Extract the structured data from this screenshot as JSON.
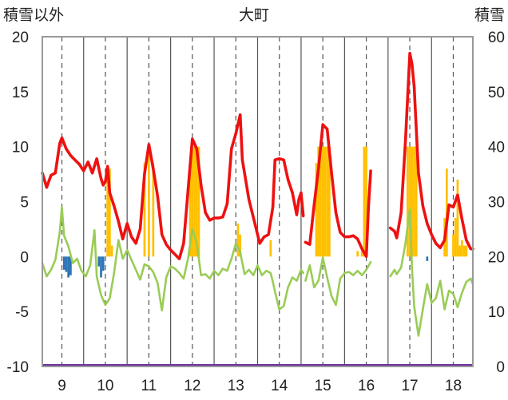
{
  "chart_data": {
    "type": "line",
    "title": "大町",
    "y_left_label": "積雪以外",
    "y_right_label": "積雪",
    "y_left_range": [
      -10,
      20
    ],
    "y_right_range": [
      0,
      60
    ],
    "y_left_ticks": [
      "20",
      "15",
      "10",
      "5",
      "0",
      "-5",
      "-10"
    ],
    "y_right_ticks": [
      "60",
      "50",
      "40",
      "30",
      "20",
      "10",
      "0"
    ],
    "x_range": [
      8.55,
      18.45
    ],
    "x_ticks": [
      "9",
      "10",
      "11",
      "12",
      "13",
      "14",
      "15",
      "16",
      "17",
      "18"
    ],
    "grid": "vertical dashed at ticks, solid between",
    "colors": {
      "max_temp": "#ee1111",
      "min_temp": "#99cc55",
      "snow_depth": "#ffc000",
      "precip": "#2e75b6",
      "bottom": "#7030a0",
      "grid": "#555555",
      "axis": "#999999"
    },
    "series": [
      {
        "kind": "line",
        "color_key": "max_temp",
        "axis": "left",
        "segments": [
          [
            [
              8.55,
              7.6
            ],
            [
              8.65,
              6.3
            ],
            [
              8.75,
              7.4
            ],
            [
              8.85,
              7.6
            ],
            [
              8.95,
              10.3
            ],
            [
              9.0,
              10.8
            ],
            [
              9.1,
              9.8
            ],
            [
              9.2,
              9.2
            ],
            [
              9.3,
              8.8
            ],
            [
              9.4,
              8.4
            ],
            [
              9.5,
              7.8
            ],
            [
              9.6,
              8.6
            ],
            [
              9.7,
              7.6
            ],
            [
              9.8,
              8.9
            ],
            [
              9.9,
              7.1
            ],
            [
              9.95,
              6.5
            ],
            [
              10.0,
              6.8
            ],
            [
              10.05,
              8.2
            ],
            [
              10.1,
              5.8
            ],
            [
              10.2,
              4.6
            ],
            [
              10.3,
              3.2
            ],
            [
              10.4,
              1.6
            ],
            [
              10.5,
              3.0
            ],
            [
              10.6,
              1.8
            ],
            [
              10.7,
              1.2
            ],
            [
              10.8,
              2.5
            ],
            [
              10.9,
              7.5
            ],
            [
              11.0,
              10.2
            ],
            [
              11.1,
              8.0
            ],
            [
              11.2,
              5.5
            ],
            [
              11.3,
              2.0
            ],
            [
              11.4,
              1.1
            ],
            [
              11.5,
              0.6
            ],
            [
              11.6,
              0.2
            ],
            [
              11.7,
              -0.2
            ],
            [
              11.8,
              1.2
            ],
            [
              11.9,
              6.0
            ],
            [
              12.0,
              10.7
            ],
            [
              12.1,
              9.8
            ],
            [
              12.2,
              6.5
            ],
            [
              12.3,
              4.0
            ],
            [
              12.4,
              3.3
            ],
            [
              12.5,
              3.5
            ],
            [
              12.6,
              3.5
            ],
            [
              12.7,
              3.6
            ],
            [
              12.8,
              4.8
            ],
            [
              12.9,
              9.8
            ],
            [
              13.0,
              11.2
            ],
            [
              13.1,
              12.9
            ],
            [
              13.15,
              8.8
            ],
            [
              13.3,
              5.2
            ],
            [
              13.45,
              2.8
            ],
            [
              13.55,
              1.2
            ],
            [
              13.65,
              1.8
            ],
            [
              13.75,
              2.0
            ],
            [
              13.85,
              4.5
            ],
            [
              13.9,
              8.8
            ],
            [
              14.0,
              8.9
            ],
            [
              14.1,
              8.8
            ],
            [
              14.2,
              7.0
            ],
            [
              14.3,
              5.8
            ],
            [
              14.4,
              3.8
            ],
            [
              14.45,
              5.2
            ],
            [
              14.5,
              5.8
            ],
            [
              14.55,
              3.7
            ]
          ],
          [
            [
              14.6,
              1.3
            ],
            [
              14.7,
              1.1
            ],
            [
              14.8,
              4.7
            ],
            [
              14.9,
              8.0
            ],
            [
              15.0,
              12.0
            ],
            [
              15.1,
              11.6
            ],
            [
              15.2,
              7.6
            ],
            [
              15.3,
              4.0
            ],
            [
              15.4,
              2.2
            ],
            [
              15.5,
              1.8
            ],
            [
              15.6,
              1.8
            ],
            [
              15.7,
              1.9
            ],
            [
              15.8,
              1.6
            ],
            [
              15.9,
              0.7
            ],
            [
              16.0,
              0.0
            ],
            [
              16.05,
              4.5
            ],
            [
              16.1,
              7.8
            ]
          ],
          [
            [
              16.55,
              2.6
            ],
            [
              16.65,
              2.3
            ],
            [
              16.7,
              1.7
            ],
            [
              16.8,
              4.0
            ],
            [
              16.9,
              10.5
            ],
            [
              17.0,
              18.5
            ],
            [
              17.05,
              17.5
            ],
            [
              17.1,
              15.5
            ],
            [
              17.2,
              7.6
            ],
            [
              17.3,
              4.6
            ],
            [
              17.4,
              3.0
            ],
            [
              17.5,
              2.0
            ],
            [
              17.6,
              1.2
            ],
            [
              17.7,
              0.8
            ],
            [
              17.8,
              1.5
            ],
            [
              17.9,
              4.7
            ],
            [
              18.0,
              4.5
            ],
            [
              18.1,
              5.6
            ],
            [
              18.2,
              3.4
            ],
            [
              18.3,
              1.5
            ],
            [
              18.4,
              0.7
            ],
            [
              18.45,
              0.7
            ]
          ]
        ]
      },
      {
        "kind": "line",
        "color_key": "min_temp",
        "axis": "left",
        "segments": [
          [
            [
              8.55,
              -0.6
            ],
            [
              8.65,
              -1.8
            ],
            [
              8.75,
              -1.2
            ],
            [
              8.85,
              -0.3
            ],
            [
              8.95,
              2.2
            ],
            [
              9.0,
              4.5
            ],
            [
              9.05,
              1.9
            ],
            [
              9.15,
              0.9
            ],
            [
              9.25,
              -0.6
            ],
            [
              9.35,
              -0.2
            ],
            [
              9.45,
              -1.3
            ],
            [
              9.55,
              -1.8
            ],
            [
              9.65,
              -0.8
            ],
            [
              9.75,
              2.4
            ],
            [
              9.8,
              -1.8
            ],
            [
              9.9,
              -3.5
            ],
            [
              10.0,
              -4.4
            ],
            [
              10.1,
              -3.8
            ],
            [
              10.2,
              -1.5
            ],
            [
              10.3,
              1.5
            ],
            [
              10.4,
              -0.2
            ],
            [
              10.5,
              0.6
            ],
            [
              10.6,
              -0.3
            ],
            [
              10.7,
              -1.2
            ],
            [
              10.8,
              -2.1
            ],
            [
              10.9,
              -0.7
            ],
            [
              11.0,
              -0.9
            ],
            [
              11.1,
              -1.4
            ],
            [
              11.2,
              -2.4
            ],
            [
              11.3,
              -4.9
            ],
            [
              11.4,
              -1.9
            ],
            [
              11.5,
              -0.9
            ],
            [
              11.6,
              -1.1
            ],
            [
              11.7,
              -1.5
            ],
            [
              11.8,
              -2.0
            ],
            [
              11.9,
              -0.2
            ],
            [
              12.0,
              2.5
            ],
            [
              12.1,
              1.2
            ],
            [
              12.2,
              -1.7
            ],
            [
              12.3,
              -1.6
            ],
            [
              12.4,
              -2.0
            ],
            [
              12.5,
              -1.3
            ],
            [
              12.6,
              -1.7
            ],
            [
              12.7,
              -1.1
            ],
            [
              12.8,
              -1.3
            ],
            [
              12.9,
              -0.2
            ],
            [
              13.0,
              1.2
            ],
            [
              13.1,
              0.4
            ],
            [
              13.2,
              -1.6
            ],
            [
              13.3,
              -1.2
            ],
            [
              13.4,
              -1.7
            ],
            [
              13.5,
              -0.8
            ],
            [
              13.6,
              -1.7
            ],
            [
              13.7,
              -1.3
            ],
            [
              13.8,
              -1.5
            ],
            [
              13.85,
              -2.3
            ],
            [
              13.9,
              -3.2
            ],
            [
              14.0,
              -4.8
            ],
            [
              14.1,
              -4.5
            ],
            [
              14.2,
              -2.8
            ],
            [
              14.3,
              -1.9
            ],
            [
              14.4,
              -2.2
            ],
            [
              14.5,
              -1.2
            ],
            [
              14.55,
              -1.5
            ]
          ],
          [
            [
              14.6,
              -2.2
            ],
            [
              14.7,
              -0.8
            ],
            [
              14.8,
              -2.8
            ],
            [
              14.9,
              -2.2
            ],
            [
              15.0,
              -0.1
            ],
            [
              15.1,
              -1.9
            ],
            [
              15.2,
              -3.6
            ],
            [
              15.3,
              -4.4
            ],
            [
              15.4,
              -2.0
            ],
            [
              15.5,
              -1.5
            ],
            [
              15.6,
              -1.4
            ],
            [
              15.7,
              -1.7
            ],
            [
              15.8,
              -1.3
            ],
            [
              15.9,
              -1.7
            ],
            [
              16.0,
              -1.2
            ],
            [
              16.1,
              -0.5
            ]
          ],
          [
            [
              16.55,
              -1.8
            ],
            [
              16.65,
              -1.2
            ],
            [
              16.7,
              -1.6
            ],
            [
              16.8,
              -1.0
            ],
            [
              16.9,
              1.2
            ],
            [
              17.0,
              4.3
            ],
            [
              17.05,
              -1.0
            ],
            [
              17.1,
              -4.5
            ],
            [
              17.2,
              -7.2
            ],
            [
              17.3,
              -4.8
            ],
            [
              17.4,
              -2.5
            ],
            [
              17.5,
              -4.2
            ],
            [
              17.6,
              -3.8
            ],
            [
              17.7,
              -2.2
            ],
            [
              17.8,
              -4.8
            ],
            [
              17.9,
              -3.1
            ],
            [
              18.0,
              -3.4
            ],
            [
              18.1,
              -4.6
            ],
            [
              18.2,
              -3.3
            ],
            [
              18.3,
              -2.3
            ],
            [
              18.4,
              -2.0
            ],
            [
              18.45,
              -2.5
            ]
          ]
        ]
      },
      {
        "kind": "bar",
        "color_key": "snow_depth",
        "axis": "right",
        "baseline": 20,
        "bars": [
          [
            10.05,
            36
          ],
          [
            10.1,
            36
          ],
          [
            10.15,
            22
          ],
          [
            10.9,
            37
          ],
          [
            11.0,
            39
          ],
          [
            11.1,
            37
          ],
          [
            11.95,
            37
          ],
          [
            12.0,
            40
          ],
          [
            12.05,
            40
          ],
          [
            12.1,
            40
          ],
          [
            12.15,
            40
          ],
          [
            13.05,
            26
          ],
          [
            13.1,
            24
          ],
          [
            13.8,
            23
          ],
          [
            14.85,
            37
          ],
          [
            14.9,
            40
          ],
          [
            14.95,
            40
          ],
          [
            15.0,
            40
          ],
          [
            15.05,
            40
          ],
          [
            15.1,
            40
          ],
          [
            15.15,
            40
          ],
          [
            15.8,
            21
          ],
          [
            15.85,
            20
          ],
          [
            15.9,
            21
          ],
          [
            15.95,
            40
          ],
          [
            16.0,
            40
          ],
          [
            16.95,
            40
          ],
          [
            17.0,
            40
          ],
          [
            17.05,
            40
          ],
          [
            17.1,
            40
          ],
          [
            17.15,
            40
          ],
          [
            17.8,
            27
          ],
          [
            17.85,
            36
          ],
          [
            18.0,
            24
          ],
          [
            18.05,
            27
          ],
          [
            18.1,
            34
          ],
          [
            18.15,
            22
          ],
          [
            18.2,
            23
          ],
          [
            18.25,
            22
          ],
          [
            18.3,
            22
          ]
        ]
      },
      {
        "kind": "bar",
        "color_key": "precip",
        "axis": "left",
        "baseline": 0,
        "bars": [
          [
            9.05,
            -1.2
          ],
          [
            9.1,
            -1.4
          ],
          [
            9.15,
            -1.9
          ],
          [
            9.2,
            -1.7
          ],
          [
            9.85,
            -0.9
          ],
          [
            9.9,
            -1.9
          ],
          [
            9.95,
            -1.3
          ],
          [
            17.4,
            -0.4
          ]
        ]
      }
    ]
  }
}
